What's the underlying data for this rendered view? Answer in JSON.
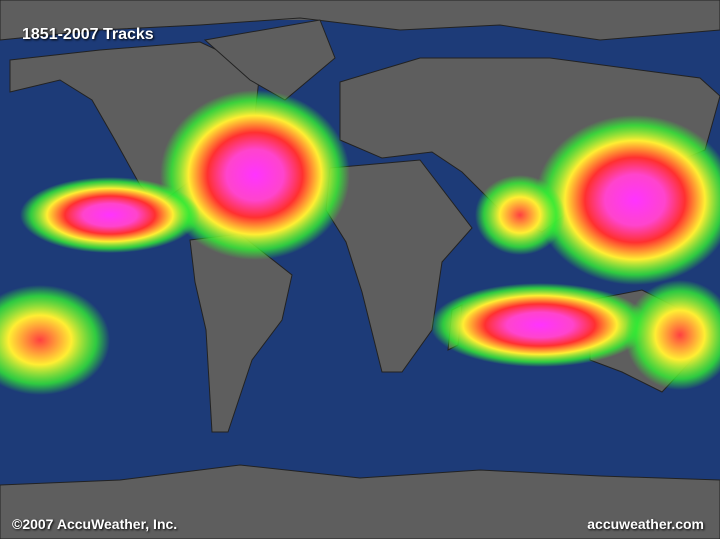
{
  "map": {
    "title": "1851-2007 Tracks",
    "copyright": "©2007 AccuWeather, Inc.",
    "site": "accuweather.com",
    "colors": {
      "ocean": "#1d3b78",
      "land": "#5e5e5e",
      "border": "#222222",
      "track_high": "#ff33ff",
      "track_mid": "#ff3030",
      "track_low": "#ffff33",
      "track_weak": "#33ee33"
    }
  }
}
